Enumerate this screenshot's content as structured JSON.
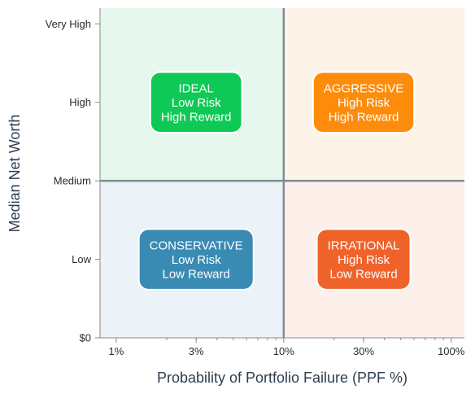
{
  "chart_data": {
    "type": "scatter",
    "title": "",
    "xlabel": "Probability of Portfolio Failure (PPF %)",
    "ylabel": "Median Net Worth",
    "x_scale": "log",
    "xlim": [
      0.8,
      120
    ],
    "x_ticks": [
      {
        "value": 1,
        "label": "1%"
      },
      {
        "value": 3,
        "label": "3%"
      },
      {
        "value": 10,
        "label": "10%"
      },
      {
        "value": 30,
        "label": "30%"
      },
      {
        "value": 100,
        "label": "100%"
      }
    ],
    "ylim": [
      0,
      4.2
    ],
    "y_ticks": [
      {
        "value": 0,
        "label": "$0"
      },
      {
        "value": 1,
        "label": "Low"
      },
      {
        "value": 2,
        "label": "Medium"
      },
      {
        "value": 3,
        "label": "High"
      },
      {
        "value": 4,
        "label": "Very High"
      }
    ],
    "divider_x": 10,
    "divider_y": 2,
    "grid": false,
    "quadrants": [
      {
        "id": "ideal",
        "x_range": [
          0.8,
          10
        ],
        "y_range": [
          2,
          4.2
        ],
        "tint": "#e6f8ee",
        "box_color": "#0ec956",
        "center_x": 3,
        "center_y": 3,
        "lines": [
          "IDEAL",
          "Low Risk",
          "High Reward"
        ]
      },
      {
        "id": "aggressive",
        "x_range": [
          10,
          120
        ],
        "y_range": [
          2,
          4.2
        ],
        "tint": "#fef3e8",
        "box_color": "#fd8c0c",
        "center_x": 30,
        "center_y": 3,
        "lines": [
          "AGGRESSIVE",
          "High Risk",
          "High Reward"
        ]
      },
      {
        "id": "conservative",
        "x_range": [
          0.8,
          10
        ],
        "y_range": [
          0,
          2
        ],
        "tint": "#ecf3f8",
        "box_color": "#3a8bb4",
        "center_x": 3,
        "center_y": 1,
        "lines": [
          "CONSERVATIVE",
          "Low Risk",
          "Low Reward"
        ]
      },
      {
        "id": "irrational",
        "x_range": [
          10,
          120
        ],
        "y_range": [
          0,
          2
        ],
        "tint": "#fdf0ea",
        "box_color": "#ef632b",
        "center_x": 30,
        "center_y": 1,
        "lines": [
          "IRRATIONAL",
          "High Risk",
          "Low Reward"
        ]
      }
    ],
    "divider_color": "#7f8c95",
    "axis_color": "#8a8a8a"
  }
}
